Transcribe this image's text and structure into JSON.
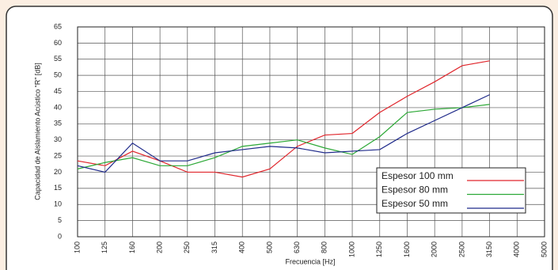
{
  "chart_data": {
    "type": "line",
    "x_label": "Frecuencia [Hz]",
    "y_label": "Capacidad de Aislamiento Acústico “R” [dB]",
    "categories": [
      "100",
      "125",
      "160",
      "200",
      "250",
      "315",
      "400",
      "500",
      "630",
      "800",
      "1000",
      "1250",
      "1600",
      "2000",
      "2500",
      "3150",
      "4000",
      "5000"
    ],
    "ylim": [
      0,
      65
    ],
    "yticks": [
      0,
      5,
      10,
      15,
      20,
      25,
      30,
      35,
      40,
      45,
      50,
      55,
      60,
      65
    ],
    "grid": true,
    "legend": "lower right",
    "series": [
      {
        "name": "Espesor 100 mm",
        "color": "#e0262c",
        "values": [
          23.5,
          22,
          26.5,
          23.5,
          20,
          20,
          18.5,
          21,
          28,
          31.5,
          32,
          38.5,
          43.5,
          48,
          53,
          54.5,
          null,
          null
        ]
      },
      {
        "name": "Espesor 80 mm",
        "color": "#2ca836",
        "values": [
          21,
          23,
          24.5,
          22,
          22,
          24.5,
          28,
          29,
          30,
          27.5,
          25.5,
          31,
          38.5,
          39.5,
          40,
          41,
          null,
          null
        ]
      },
      {
        "name": "Espesor 50 mm",
        "color": "#1f2a8a",
        "values": [
          22,
          20,
          29,
          23.5,
          23.5,
          26,
          27,
          28,
          27.5,
          26,
          26.5,
          27,
          32,
          36,
          40,
          44,
          null,
          null
        ]
      }
    ]
  }
}
